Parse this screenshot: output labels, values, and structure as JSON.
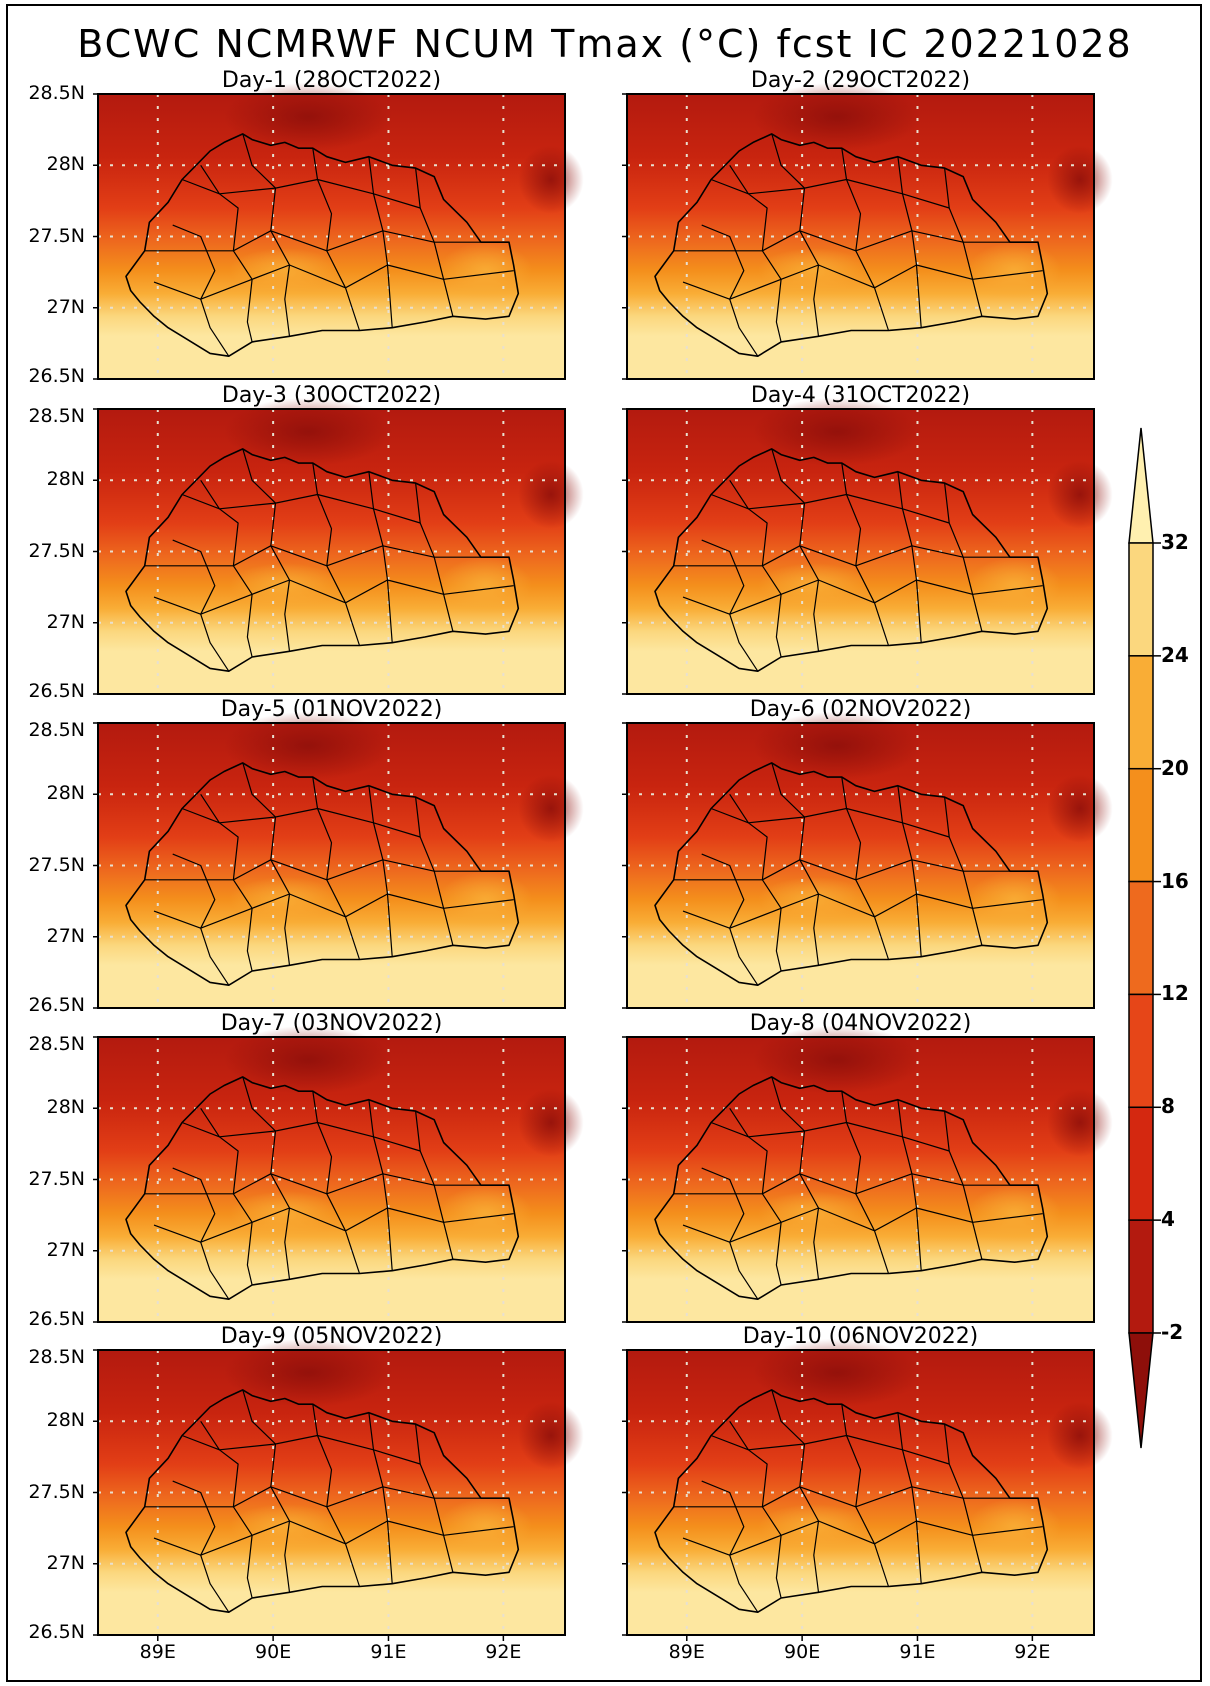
{
  "title": "BCWC NCMRWF NCUM Tmax  (°C) fcst IC 20221028",
  "panels": [
    {
      "label": "Day-1 (28OCT2022)"
    },
    {
      "label": "Day-2 (29OCT2022)"
    },
    {
      "label": "Day-3 (30OCT2022)"
    },
    {
      "label": "Day-4 (31OCT2022)"
    },
    {
      "label": "Day-5 (01NOV2022)"
    },
    {
      "label": "Day-6 (02NOV2022)"
    },
    {
      "label": "Day-7 (03NOV2022)"
    },
    {
      "label": "Day-8 (04NOV2022)"
    },
    {
      "label": "Day-9 (05NOV2022)"
    },
    {
      "label": "Day-10 (06NOV2022)"
    }
  ],
  "axes": {
    "lat_ticks": [
      "28.5N",
      "28N",
      "27.5N",
      "27N",
      "26.5N"
    ],
    "lon_ticks": [
      "89E",
      "90E",
      "91E",
      "92E"
    ]
  },
  "colorbar": {
    "levels": [
      "32",
      "24",
      "20",
      "16",
      "12",
      "8",
      "4",
      "-2"
    ],
    "colors": [
      "#fff0b0",
      "#fbd77e",
      "#f9ad36",
      "#f48f1c",
      "#ee6a1e",
      "#e64618",
      "#d42810",
      "#b31a0f",
      "#8e0f0a"
    ]
  }
}
